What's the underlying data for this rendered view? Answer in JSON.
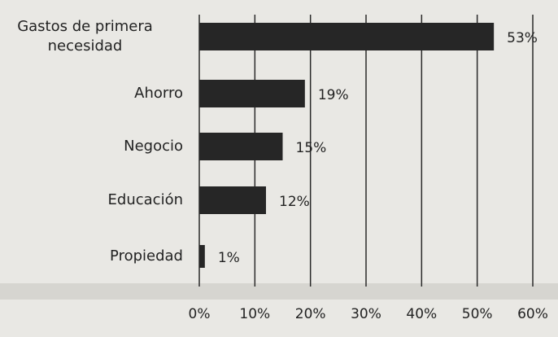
{
  "chart_data": {
    "type": "bar",
    "orientation": "horizontal",
    "categories": [
      "Gastos de primera necesidad",
      "Ahorro",
      "Negocio",
      "Educación",
      "Propiedad"
    ],
    "values": [
      53,
      19,
      15,
      12,
      1
    ],
    "value_labels": [
      "53%",
      "19%",
      "15%",
      "12%",
      "1%"
    ],
    "color": "#262626",
    "xlim": [
      0,
      60
    ],
    "xticks": [
      {
        "value": 0,
        "label": "0%"
      },
      {
        "value": 10,
        "label": "10%"
      },
      {
        "value": 20,
        "label": "20%"
      },
      {
        "value": 30,
        "label": "30%"
      },
      {
        "value": 40,
        "label": "40%"
      },
      {
        "value": 50,
        "label": "50%"
      },
      {
        "value": 60,
        "label": "60%"
      }
    ],
    "grid": true
  }
}
